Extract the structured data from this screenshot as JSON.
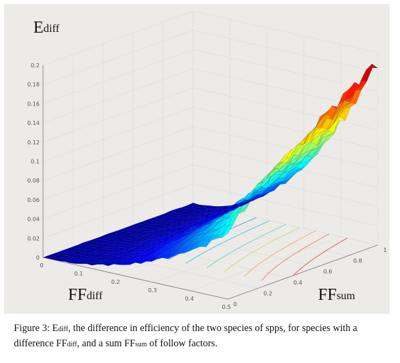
{
  "figure": {
    "axis_titles": {
      "z": {
        "main": "E",
        "sub": "diff"
      },
      "x": {
        "main": "FF",
        "sub": "diff"
      },
      "y": {
        "main": "FF",
        "sub": "sum"
      }
    }
  },
  "chart_data": {
    "type": "surface",
    "z_ticks": [
      "0",
      "0.02",
      "0.04",
      "0.06",
      "0.08",
      "0.1",
      "0.12",
      "0.14",
      "0.16",
      "0.18",
      "0.2"
    ],
    "x_ticks": [
      "0",
      "0.1",
      "0.2",
      "0.3",
      "0.4",
      "0.5"
    ],
    "y_ticks": [
      "0",
      "0.2",
      "0.4",
      "0.6",
      "0.8",
      "1"
    ],
    "xlim": [
      0,
      0.5
    ],
    "ylim": [
      0,
      1
    ],
    "zlim": [
      0,
      0.2
    ],
    "colormap": "jet",
    "contours_on_floor": true,
    "grid": true
  },
  "caption": {
    "label": "Figure 3: ",
    "e_main": "E",
    "e_sub": "diff",
    "part1": ", the difference in efficiency of the two species of spps,  for species with a difference ",
    "ffd_main": "FF",
    "ffd_sub": "diff",
    "part2": ", and a sum ",
    "ffs_main": "FF",
    "ffs_sub": "sum",
    "part3": " of follow factors."
  }
}
